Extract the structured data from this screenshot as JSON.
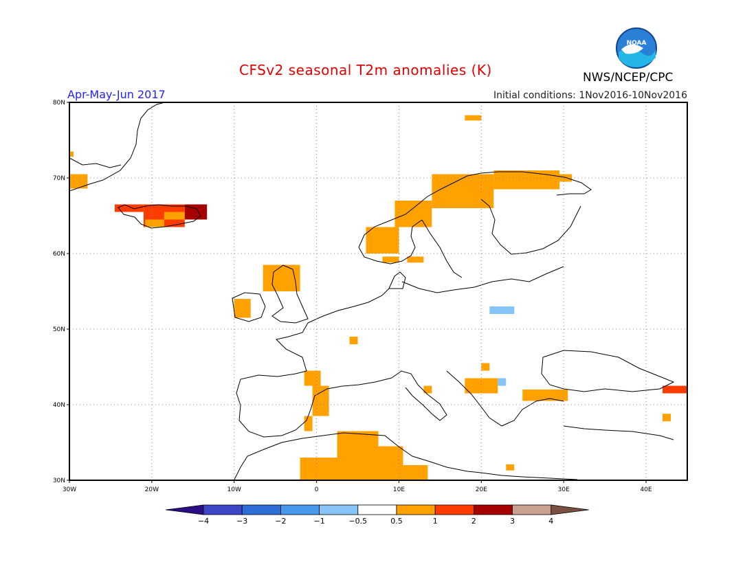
{
  "header": {
    "title": "CFSv2 seasonal T2m anomalies (K)",
    "period": "Apr-May-Jun 2017",
    "initial_conditions": "Initial conditions: 1Nov2016-10Nov2016",
    "agency": "NWS/NCEP/CPC",
    "logo_text": "NOAA"
  },
  "map": {
    "lon_range": [
      -30,
      45
    ],
    "lat_range": [
      30,
      80
    ],
    "lat_ticks": [
      {
        "value": 80,
        "label": "80N"
      },
      {
        "value": 70,
        "label": "70N"
      },
      {
        "value": 60,
        "label": "60N"
      },
      {
        "value": 50,
        "label": "50N"
      },
      {
        "value": 40,
        "label": "40N"
      },
      {
        "value": 30,
        "label": "30N"
      }
    ],
    "lon_ticks": [
      {
        "value": -30,
        "label": "30W"
      },
      {
        "value": -20,
        "label": "20W"
      },
      {
        "value": -10,
        "label": "10W"
      },
      {
        "value": 0,
        "label": "0"
      },
      {
        "value": 10,
        "label": "10E"
      },
      {
        "value": 20,
        "label": "20E"
      },
      {
        "value": 30,
        "label": "30E"
      },
      {
        "value": 40,
        "label": "40E"
      }
    ],
    "gridlines": "dotted",
    "colors": {
      "coast": "#000000",
      "grid": "#888888",
      "frame": "#000000"
    }
  },
  "anomaly_cells": [
    {
      "lon": [
        -30,
        -27.8
      ],
      "lat": [
        68.6,
        70.5
      ],
      "value": 0.75
    },
    {
      "lon": [
        -30,
        -29.5
      ],
      "lat": [
        72.8,
        73.5
      ],
      "value": 0.75
    },
    {
      "lon": [
        -24.5,
        -21
      ],
      "lat": [
        65.5,
        66.5
      ],
      "value": 1.5
    },
    {
      "lon": [
        -21,
        -16
      ],
      "lat": [
        63.5,
        66.5
      ],
      "value": 1.5
    },
    {
      "lon": [
        -18.5,
        -16
      ],
      "lat": [
        64.5,
        65.5
      ],
      "value": 0.75
    },
    {
      "lon": [
        -16,
        -13.3
      ],
      "lat": [
        64.5,
        66.5
      ],
      "value": 2.5
    },
    {
      "lon": [
        -20.8,
        -18.5
      ],
      "lat": [
        63.5,
        64.5
      ],
      "value": 0.75
    },
    {
      "lon": [
        -10,
        -8
      ],
      "lat": [
        51.5,
        54
      ],
      "value": 0.75
    },
    {
      "lon": [
        -6.5,
        -2
      ],
      "lat": [
        55,
        58.5
      ],
      "value": 0.75
    },
    {
      "lon": [
        -1.5,
        0.5
      ],
      "lat": [
        42.5,
        44.5
      ],
      "value": 0.75
    },
    {
      "lon": [
        -0.5,
        1.5
      ],
      "lat": [
        38.5,
        42.5
      ],
      "value": 0.75
    },
    {
      "lon": [
        -1.5,
        -0.5
      ],
      "lat": [
        36.5,
        38.5
      ],
      "value": 0.75
    },
    {
      "lon": [
        4,
        5
      ],
      "lat": [
        48,
        49
      ],
      "value": 0.75
    },
    {
      "lon": [
        6,
        10
      ],
      "lat": [
        60,
        63.5
      ],
      "value": 0.75
    },
    {
      "lon": [
        8,
        10
      ],
      "lat": [
        58.8,
        59.6
      ],
      "value": 0.75
    },
    {
      "lon": [
        11,
        13
      ],
      "lat": [
        58.8,
        59.6
      ],
      "value": 0.75
    },
    {
      "lon": [
        9.5,
        14
      ],
      "lat": [
        63.5,
        67
      ],
      "value": 0.75
    },
    {
      "lon": [
        14,
        21.5
      ],
      "lat": [
        66,
        70.5
      ],
      "value": 0.75
    },
    {
      "lon": [
        21.5,
        29.5
      ],
      "lat": [
        68.5,
        71
      ],
      "value": 0.75
    },
    {
      "lon": [
        29.5,
        31
      ],
      "lat": [
        69.5,
        70.5
      ],
      "value": 0.75
    },
    {
      "lon": [
        18,
        20
      ],
      "lat": [
        77.6,
        78.3
      ],
      "value": 0.75
    },
    {
      "lon": [
        -2,
        7.5
      ],
      "lat": [
        30,
        33
      ],
      "value": 0.75
    },
    {
      "lon": [
        2.5,
        7.5
      ],
      "lat": [
        33,
        36.5
      ],
      "value": 0.75
    },
    {
      "lon": [
        7.5,
        10.5
      ],
      "lat": [
        30,
        34.5
      ],
      "value": 0.75
    },
    {
      "lon": [
        10.5,
        13.5
      ],
      "lat": [
        30,
        32
      ],
      "value": 0.75
    },
    {
      "lon": [
        13,
        14
      ],
      "lat": [
        41.5,
        42.5
      ],
      "value": 0.75
    },
    {
      "lon": [
        18,
        22
      ],
      "lat": [
        41.5,
        43.5
      ],
      "value": 0.75
    },
    {
      "lon": [
        20,
        21
      ],
      "lat": [
        44.5,
        45.5
      ],
      "value": 0.75
    },
    {
      "lon": [
        25,
        30.5
      ],
      "lat": [
        40.5,
        42
      ],
      "value": 0.75
    },
    {
      "lon": [
        23,
        24
      ],
      "lat": [
        31.3,
        32.1
      ],
      "value": 0.75
    },
    {
      "lon": [
        42,
        43
      ],
      "lat": [
        37.8,
        38.8
      ],
      "value": 0.75
    },
    {
      "lon": [
        42,
        45
      ],
      "lat": [
        41.5,
        42.5
      ],
      "value": 1.5
    },
    {
      "lon": [
        21,
        24
      ],
      "lat": [
        52,
        53
      ],
      "value": -0.75
    },
    {
      "lon": [
        22,
        23
      ],
      "lat": [
        42.5,
        43.5
      ],
      "value": -0.75
    }
  ],
  "colorbar": {
    "labels": [
      "−4",
      "−3",
      "−2",
      "−1",
      "−0.5",
      "0.5",
      "1",
      "2",
      "3",
      "4"
    ],
    "colors": [
      "#2b0e86",
      "#3c46c6",
      "#2c6ed6",
      "#4899ec",
      "#86c3f6",
      "#ffffff",
      "#ffa200",
      "#ff3c00",
      "#a60000",
      "#c8a192",
      "#7a5040"
    ]
  }
}
